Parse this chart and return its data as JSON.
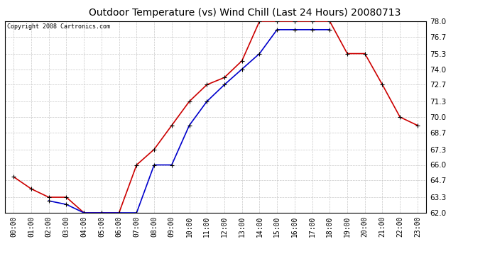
{
  "title": "Outdoor Temperature (vs) Wind Chill (Last 24 Hours) 20080713",
  "copyright": "Copyright 2008 Cartronics.com",
  "x_labels": [
    "00:00",
    "01:00",
    "02:00",
    "03:00",
    "04:00",
    "05:00",
    "06:00",
    "07:00",
    "08:00",
    "09:00",
    "10:00",
    "11:00",
    "12:00",
    "13:00",
    "14:00",
    "15:00",
    "16:00",
    "17:00",
    "18:00",
    "19:00",
    "20:00",
    "21:00",
    "22:00",
    "23:00"
  ],
  "temp_red": [
    65.0,
    64.0,
    63.3,
    63.3,
    62.0,
    62.0,
    62.0,
    66.0,
    67.3,
    69.3,
    71.3,
    72.7,
    73.3,
    74.7,
    78.0,
    78.0,
    78.0,
    78.0,
    78.0,
    75.3,
    75.3,
    72.7,
    70.0,
    69.3
  ],
  "wind_blue": [
    null,
    null,
    63.0,
    62.7,
    62.0,
    62.0,
    62.0,
    62.0,
    66.0,
    66.0,
    69.3,
    71.3,
    72.7,
    74.0,
    75.3,
    77.3,
    77.3,
    77.3,
    77.3,
    null,
    null,
    null,
    null,
    null
  ],
  "ylim": [
    62.0,
    78.0
  ],
  "yticks": [
    62.0,
    63.3,
    64.7,
    66.0,
    67.3,
    68.7,
    70.0,
    71.3,
    72.7,
    74.0,
    75.3,
    76.7,
    78.0
  ],
  "bg_color": "#ffffff",
  "plot_bg": "#ffffff",
  "red_color": "#cc0000",
  "blue_color": "#0000cc",
  "grid_color": "#c8c8c8",
  "title_fontsize": 10,
  "copyright_fontsize": 6,
  "xtick_fontsize": 7,
  "ytick_fontsize": 7.5
}
